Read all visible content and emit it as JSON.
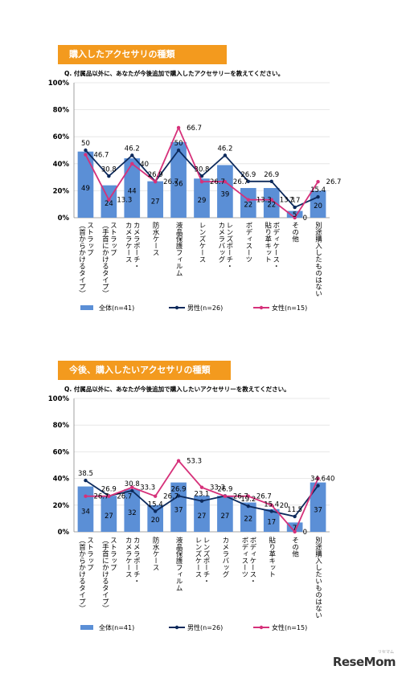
{
  "chart_data": [
    {
      "type": "bar",
      "title": "購入したアクセサリの種類",
      "question": "Q. 付属品以外に、あなたが今後追加で購入したアクセサリーを教えてください。",
      "ylim": [
        0,
        100
      ],
      "yticks": [
        "0%",
        "20%",
        "40%",
        "60%",
        "80%",
        "100%"
      ],
      "categories": [
        "ストラップ（首からかけるタイプ）",
        "ストラップ（手首にかけるタイプ）",
        "カメラポーチ・カメラケース",
        "防水ケース",
        "液晶保護フィルム",
        "レンズケース",
        "レンズポーチ・カメラバッグ",
        "ボディスーツ",
        "ボディケース・貼り革キット",
        "その他",
        "別途購入したものはない"
      ],
      "series": [
        {
          "name": "全体(n=41)",
          "kind": "bar",
          "color": "#5b8fd6",
          "values": [
            49,
            24,
            44,
            27,
            56,
            29,
            39,
            22,
            22,
            5,
            20
          ]
        },
        {
          "name": "男性(n=26)",
          "kind": "line",
          "color": "#0d2a5c",
          "values": [
            50,
            30.8,
            46.2,
            26.9,
            50,
            30.8,
            46.2,
            26.9,
            26.9,
            7.7,
            15.4
          ]
        },
        {
          "name": "女性(n=15)",
          "kind": "line",
          "color": "#d6317a",
          "values": [
            46.7,
            13.3,
            40,
            26.7,
            66.7,
            26.7,
            26.7,
            13.3,
            13.3,
            0,
            26.7
          ]
        }
      ],
      "legend_position": "bottom"
    },
    {
      "type": "bar",
      "title": "今後、購入したいアクセサリの種類",
      "question": "Q. 付属品以外に、あなたが今後追加で購入したいアクセサリーを教えてください。",
      "ylim": [
        0,
        100
      ],
      "yticks": [
        "0%",
        "20%",
        "40%",
        "60%",
        "80%",
        "100%"
      ],
      "categories": [
        "ストラップ（首からかけるタイプ）",
        "ストラップ（手首にかけるタイプ）",
        "カメラポーチ・カメラケース",
        "防水ケース",
        "液晶保護フィルム",
        "レンズポーチ・レンズケース",
        "カメラバッグ",
        "ボディケース・ボディスーツ",
        "貼り革キット",
        "その他",
        "別途購入したいものはない"
      ],
      "series": [
        {
          "name": "全体(n=41)",
          "kind": "bar",
          "color": "#5b8fd6",
          "values": [
            34,
            27,
            32,
            20,
            37,
            27,
            27,
            22,
            17,
            7,
            37
          ]
        },
        {
          "name": "男性(n=26)",
          "kind": "line",
          "color": "#0d2a5c",
          "values": [
            38.5,
            26.9,
            30.8,
            15.4,
            26.9,
            23.1,
            26.9,
            19.2,
            15.4,
            11.5,
            34.6
          ]
        },
        {
          "name": "女性(n=15)",
          "kind": "line",
          "color": "#d6317a",
          "values": [
            26.7,
            26.7,
            33.3,
            26.7,
            53.3,
            33.3,
            26.7,
            26.7,
            20,
            0,
            40
          ]
        }
      ],
      "legend_position": "bottom"
    }
  ],
  "watermark": "ReseMom",
  "watermark_sub": "リセマム"
}
